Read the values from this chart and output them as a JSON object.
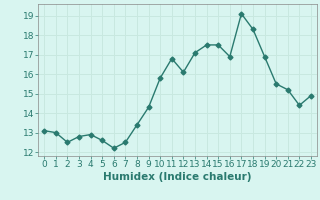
{
  "x": [
    0,
    1,
    2,
    3,
    4,
    5,
    6,
    7,
    8,
    9,
    10,
    11,
    12,
    13,
    14,
    15,
    16,
    17,
    18,
    19,
    20,
    21,
    22,
    23
  ],
  "y": [
    13.1,
    13.0,
    12.5,
    12.8,
    12.9,
    12.6,
    12.2,
    12.5,
    13.4,
    14.3,
    15.8,
    16.8,
    16.1,
    17.1,
    17.5,
    17.5,
    16.9,
    19.1,
    18.3,
    16.9,
    15.5,
    15.2,
    14.4,
    14.9
  ],
  "line_color": "#2a7a6f",
  "marker": "D",
  "marker_size": 2.5,
  "bg_color": "#d8f5f0",
  "grid_color": "#c8e8e0",
  "xlabel": "Humidex (Indice chaleur)",
  "xlim": [
    -0.5,
    23.5
  ],
  "ylim": [
    11.8,
    19.6
  ],
  "yticks": [
    12,
    13,
    14,
    15,
    16,
    17,
    18,
    19
  ],
  "xticks": [
    0,
    1,
    2,
    3,
    4,
    5,
    6,
    7,
    8,
    9,
    10,
    11,
    12,
    13,
    14,
    15,
    16,
    17,
    18,
    19,
    20,
    21,
    22,
    23
  ],
  "tick_fontsize": 6.5,
  "xlabel_fontsize": 7.5
}
